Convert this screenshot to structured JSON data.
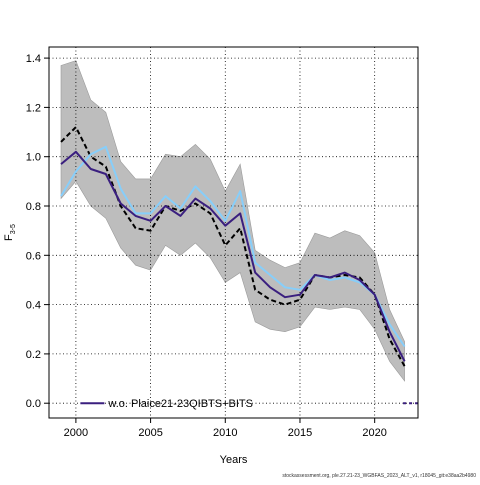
{
  "chart_data": {
    "type": "line",
    "title": "",
    "xlabel": "Years",
    "ylabel_main": "F",
    "ylabel_sub": "3-5",
    "xlim": [
      1998.2,
      2022.9
    ],
    "ylim": [
      -0.06,
      1.445
    ],
    "xticks": [
      2000,
      2005,
      2010,
      2015,
      2020
    ],
    "yticks": [
      0.0,
      0.2,
      0.4,
      0.6,
      0.8,
      1.0,
      1.2,
      1.4
    ],
    "xtick_labels": [
      "2000",
      "2005",
      "2010",
      "2015",
      "2020"
    ],
    "ytick_labels": [
      "0.0",
      "0.2",
      "0.4",
      "0.6",
      "0.8",
      "1.0",
      "1.2",
      "1.4"
    ],
    "grid": true,
    "legend_position": "bottom-left",
    "legend_entries": [
      "w.o. Plaice21-23QIBTS+BITS"
    ],
    "colors": {
      "band": "#bdbdbd",
      "band_edge": "#9a9a9a",
      "baseline": "#000000",
      "light_blue": "#87cefa",
      "dark_purple": "#3a1f7f",
      "grid": "#000000",
      "zero_segment": "#3a1f7f"
    },
    "x": [
      1999,
      2000,
      2001,
      2002,
      2003,
      2004,
      2005,
      2006,
      2007,
      2008,
      2009,
      2010,
      2011,
      2012,
      2013,
      2014,
      2015,
      2016,
      2017,
      2018,
      2019,
      2020,
      2021,
      2022
    ],
    "band": {
      "upper": [
        1.37,
        1.39,
        1.23,
        1.18,
        0.98,
        0.91,
        0.91,
        1.01,
        1.0,
        1.05,
        0.99,
        0.86,
        0.97,
        0.62,
        0.58,
        0.55,
        0.57,
        0.69,
        0.67,
        0.7,
        0.68,
        0.61,
        0.38,
        0.25
      ],
      "lower": [
        0.83,
        0.9,
        0.8,
        0.75,
        0.63,
        0.56,
        0.54,
        0.64,
        0.6,
        0.65,
        0.59,
        0.49,
        0.53,
        0.33,
        0.3,
        0.29,
        0.31,
        0.39,
        0.38,
        0.39,
        0.38,
        0.3,
        0.17,
        0.09
      ]
    },
    "series": [
      {
        "values": [
          1.06,
          1.12,
          1.0,
          0.96,
          0.8,
          0.71,
          0.7,
          0.8,
          0.78,
          0.81,
          0.77,
          0.64,
          0.71,
          0.46,
          0.42,
          0.4,
          0.42,
          0.52,
          0.51,
          0.52,
          0.51,
          0.44,
          0.26,
          0.15
        ]
      },
      {
        "values": [
          0.84,
          0.94,
          1.01,
          1.04,
          0.87,
          0.77,
          0.77,
          0.84,
          0.79,
          0.88,
          0.82,
          0.74,
          0.86,
          0.57,
          0.52,
          0.47,
          0.46,
          0.52,
          0.5,
          0.51,
          0.49,
          0.44,
          0.32,
          0.23
        ]
      },
      {
        "name": "w.o. Plaice21-23QIBTS+BITS",
        "values": [
          0.97,
          1.02,
          0.95,
          0.93,
          0.81,
          0.76,
          0.74,
          0.8,
          0.76,
          0.83,
          0.79,
          0.72,
          0.77,
          0.53,
          0.47,
          0.43,
          0.44,
          0.52,
          0.51,
          0.53,
          0.5,
          0.44,
          0.29,
          0.17
        ]
      }
    ]
  },
  "footer": "stockassessment.org, ple.27.21-23_WGBFAS_2023_ALT_v1, r18045_git:e38aa2b4980"
}
